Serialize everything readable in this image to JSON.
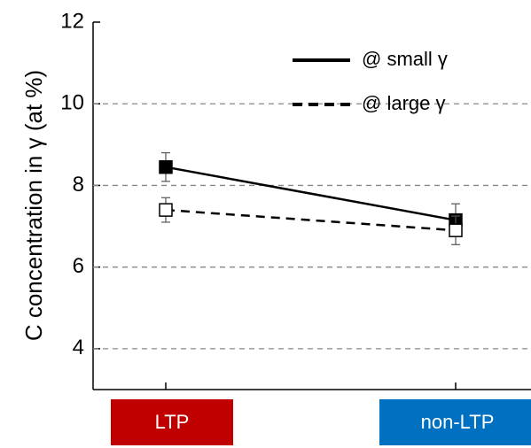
{
  "chart_data": {
    "type": "line",
    "y_label": "C concentration in γ (at %)",
    "categories": [
      "LTP",
      "non-LTP"
    ],
    "category_colors": [
      "#c00000",
      "#0070c0"
    ],
    "series": [
      {
        "name": "@ small γ",
        "color": "#000000",
        "dash": false,
        "marker": "filled-square",
        "values": [
          8.45,
          7.15
        ],
        "errors": [
          0.35,
          0.4
        ]
      },
      {
        "name": "@ large γ",
        "color": "#000000",
        "dash": true,
        "marker": "open-square",
        "values": [
          7.4,
          6.9
        ],
        "errors": [
          0.3,
          0.35
        ]
      }
    ],
    "ylim": [
      3,
      12
    ],
    "yticks": [
      4,
      6,
      8,
      10,
      12
    ],
    "grid": true,
    "legend": "upper right"
  }
}
